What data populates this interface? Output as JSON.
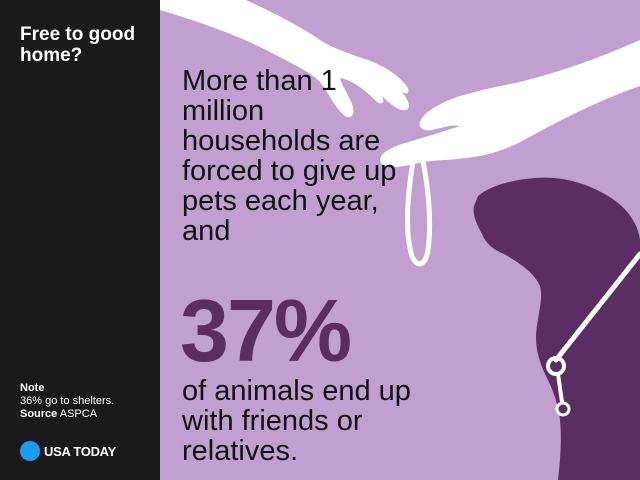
{
  "sidebar": {
    "title": "Free to good home?",
    "note_label": "Note",
    "note_text": "36% go to shelters.",
    "source_label": "Source",
    "source_text": "ASPCA"
  },
  "brand": {
    "name": "USA TODAY",
    "dot_color": "#1d9bf0"
  },
  "main": {
    "headline": "More than 1 million households are forced to give up pets each year, and",
    "stat": "37%",
    "subtext": "of animals end up with friends or relatives.",
    "background_color": "#c19fd0",
    "dog_color": "#5a2e62"
  },
  "icons": [
    "hand-icon",
    "dog-icon",
    "leash-icon"
  ]
}
